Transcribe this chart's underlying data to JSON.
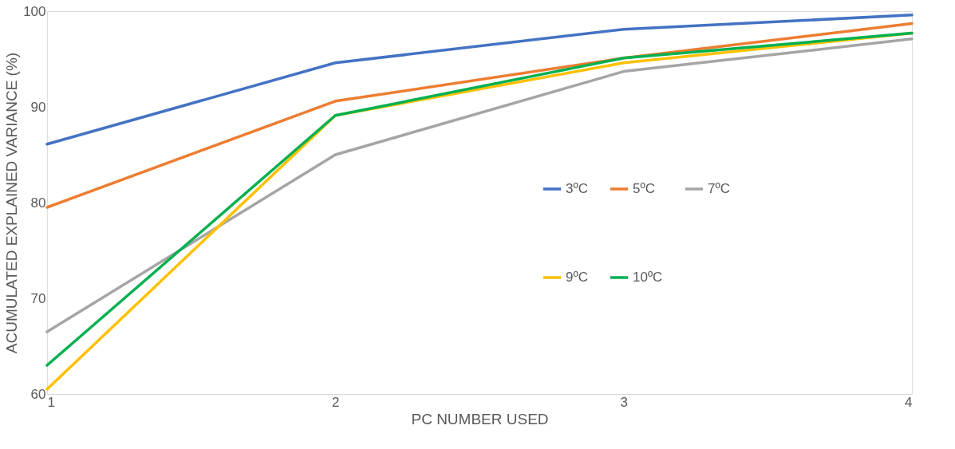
{
  "chart_data": {
    "type": "line",
    "xlabel": "PC NUMBER USED",
    "ylabel": "ACUMULATED EXPLAINED VARIANCE (%)",
    "x": [
      1,
      2,
      3,
      4
    ],
    "xlim": [
      1,
      4
    ],
    "xticks": [
      1,
      2,
      3,
      4
    ],
    "ylim": [
      60,
      100
    ],
    "yticks": [
      60,
      70,
      80,
      90,
      100
    ],
    "grid": false,
    "legend": "right",
    "marker": "none",
    "line_style": "solid",
    "series": [
      {
        "name": "3ºC",
        "color": "#4472c4",
        "values": [
          86.1,
          94.6,
          98.1,
          99.6
        ]
      },
      {
        "name": "5ºC",
        "color": "#ed7d31",
        "values": [
          79.5,
          90.6,
          95.1,
          98.7
        ]
      },
      {
        "name": "7ºC",
        "color": "#a5a5a5",
        "values": [
          66.5,
          85.0,
          93.7,
          97.1
        ]
      },
      {
        "name": "9ºC",
        "color": "#ffc000",
        "values": [
          60.5,
          89.1,
          94.6,
          97.7
        ]
      },
      {
        "name": "10ºC",
        "color": "#00b050",
        "values": [
          63.0,
          89.1,
          95.1,
          97.7
        ]
      }
    ]
  }
}
